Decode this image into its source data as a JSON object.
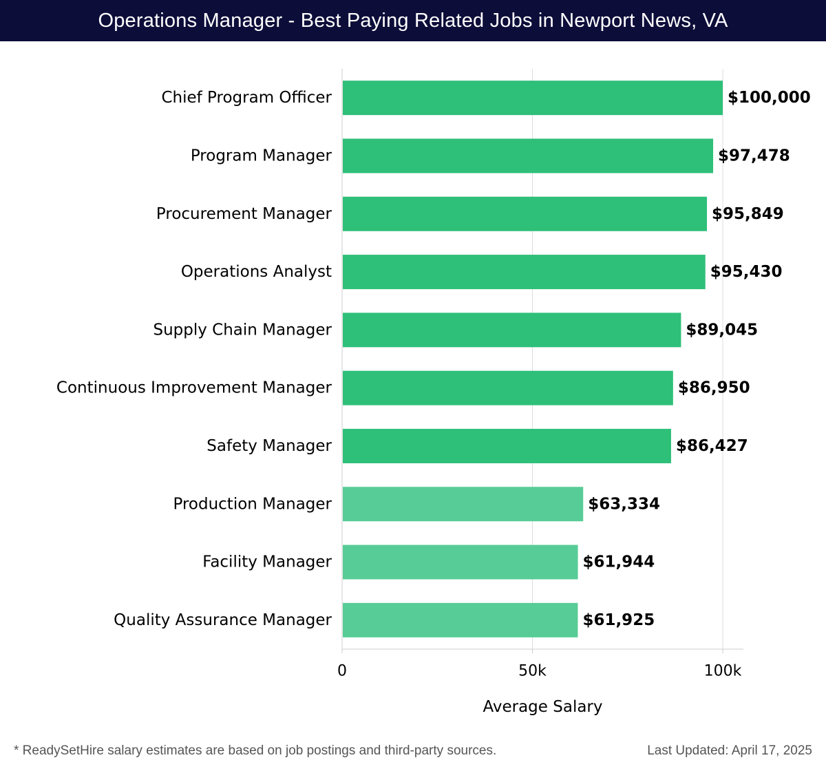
{
  "header": {
    "title": "Operations Manager - Best Paying Related Jobs in Newport News, VA"
  },
  "chart_data": {
    "type": "bar",
    "orientation": "horizontal",
    "title": "Operations Manager - Best Paying Related Jobs in Newport News, VA",
    "xlabel": "Average Salary",
    "ylabel": "",
    "xlim": [
      0,
      105000
    ],
    "grid": true,
    "x_ticks": [
      {
        "value": 0,
        "label": "0"
      },
      {
        "value": 50000,
        "label": "50k"
      },
      {
        "value": 100000,
        "label": "100k"
      }
    ],
    "categories": [
      "Chief Program Officer",
      "Program Manager",
      "Procurement Manager",
      "Operations Analyst",
      "Supply Chain Manager",
      "Continuous Improvement Manager",
      "Safety Manager",
      "Production Manager",
      "Facility Manager",
      "Quality Assurance Manager"
    ],
    "values": [
      100000,
      97478,
      95849,
      95430,
      89045,
      86950,
      86427,
      63334,
      61944,
      61925
    ],
    "value_labels": [
      "$100,000",
      "$97,478",
      "$95,849",
      "$95,430",
      "$89,045",
      "$86,950",
      "$86,427",
      "$63,334",
      "$61,944",
      "$61,925"
    ],
    "colors": {
      "high": "#2ebf78",
      "low": "#57cc96",
      "grid": "#dddddd",
      "axis": "#cccccc",
      "text": "#000000"
    },
    "high_count": 7
  },
  "footer": {
    "note": "* ReadySetHire salary estimates are based on job postings and third-party sources.",
    "updated": "Last Updated: April 17, 2025"
  }
}
